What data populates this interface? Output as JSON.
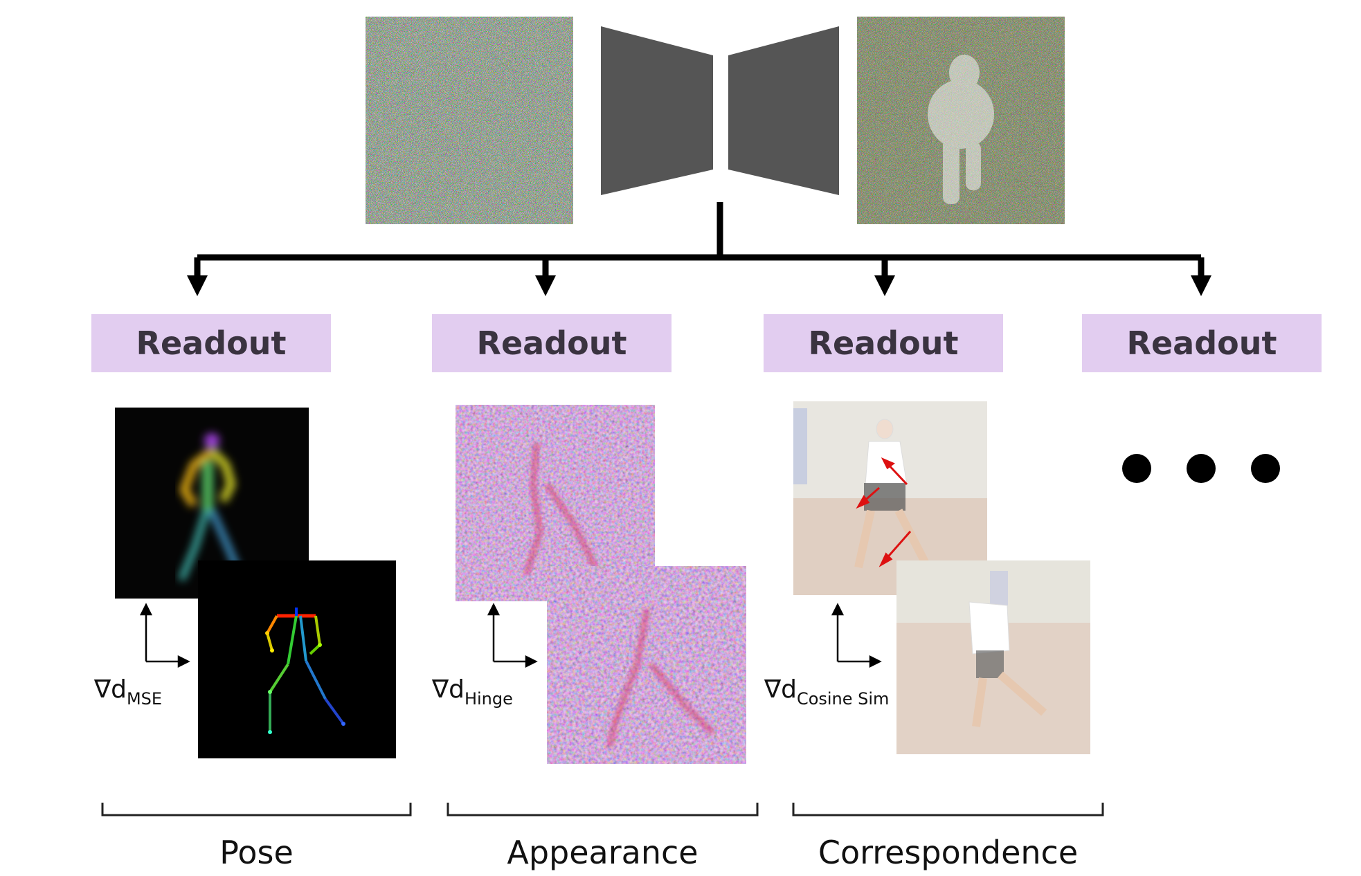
{
  "readouts": [
    {
      "label": "Readout"
    },
    {
      "label": "Readout"
    },
    {
      "label": "Readout"
    },
    {
      "label": "Readout"
    }
  ],
  "gradients": [
    {
      "symbol": "∇d",
      "sub": "MSE"
    },
    {
      "symbol": "∇d",
      "sub": "Hinge"
    },
    {
      "symbol": "∇d",
      "sub": "Cosine Sim"
    }
  ],
  "categories": [
    {
      "label": "Pose"
    },
    {
      "label": "Appearance"
    },
    {
      "label": "Correspondence"
    }
  ],
  "colors": {
    "readout_fill": "#e2cdf0",
    "network": "#555555",
    "arrow": "#000000",
    "correspondence_arrows": "#dd1111"
  }
}
